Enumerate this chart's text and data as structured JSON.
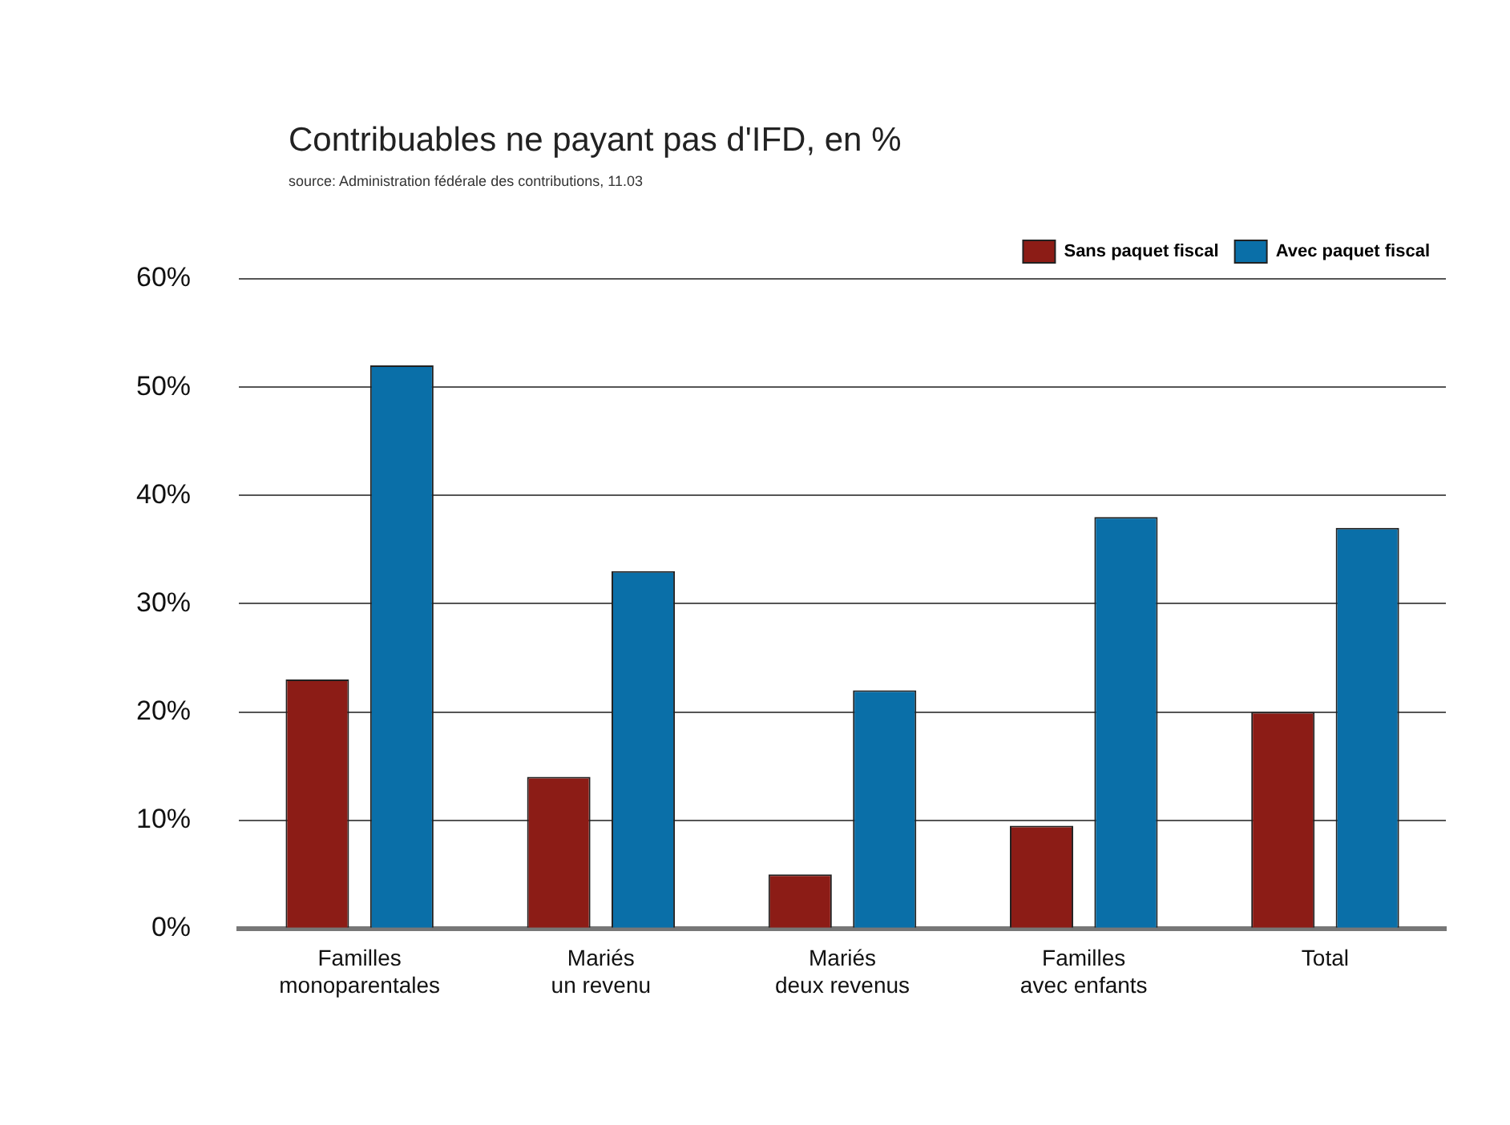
{
  "chart_data": {
    "type": "bar",
    "title": "Contribuables ne payant pas d'IFD, en %",
    "subtitle": "source: Administration fédérale des contributions, 11.03",
    "categories": [
      "Familles\nmonoparentales",
      "Mariés\nun revenu",
      "Mariés\ndeux revenus",
      "Familles\navec enfants",
      "Total"
    ],
    "series": [
      {
        "name": "Sans paquet fiscal",
        "color": "#8c1c16",
        "values": [
          23,
          14,
          5,
          9.5,
          20
        ]
      },
      {
        "name": "Avec paquet fiscal",
        "color": "#0a6fa8",
        "values": [
          52,
          33,
          22,
          38,
          37
        ]
      }
    ],
    "ylim": [
      0,
      60
    ],
    "yticks": [
      {
        "value": 0,
        "label": "0%"
      },
      {
        "value": 10,
        "label": "10%"
      },
      {
        "value": 20,
        "label": "20%"
      },
      {
        "value": 30,
        "label": "30%"
      },
      {
        "value": 40,
        "label": "40%"
      },
      {
        "value": 50,
        "label": "50%"
      },
      {
        "value": 60,
        "label": "60%"
      }
    ],
    "grid": "y",
    "legend": "top right"
  }
}
